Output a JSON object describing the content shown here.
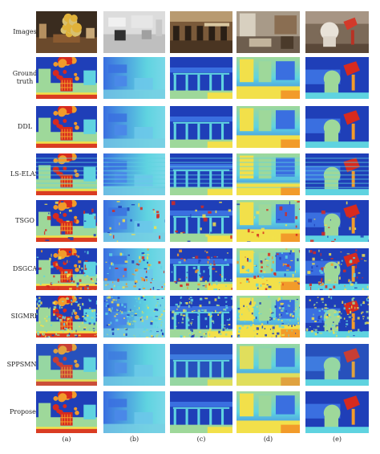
{
  "figure": {
    "row_labels": [
      "Images",
      "Ground\ntruth",
      "DDL",
      "LS-ELAS",
      "TSGO",
      "DSGCA",
      "SIGMRF",
      "SPPSMNet",
      "Proposed"
    ],
    "col_labels": [
      "(a)",
      "(b)",
      "(c)",
      "(d)",
      "(e)"
    ]
  },
  "colors": {
    "deep_blue": "#1f3fb8",
    "blue": "#3a6fe0",
    "cyan": "#5fd3e0",
    "green": "#9ed89a",
    "yellow": "#f2e04a",
    "orange": "#f29b2a",
    "red": "#d72a1e"
  }
}
